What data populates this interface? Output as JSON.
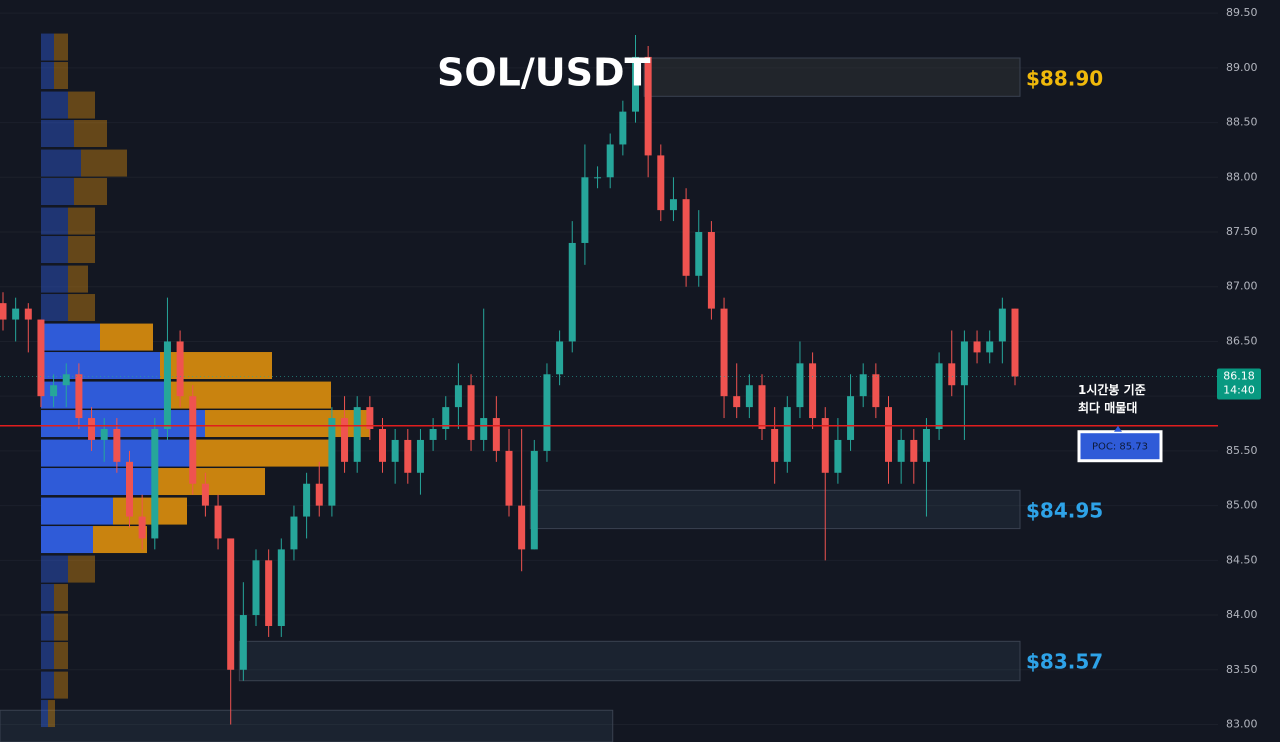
{
  "chart_data": {
    "type": "candlestick",
    "title": "SOL/USDT",
    "ylim": [
      82.84,
      89.62
    ],
    "yticks": [
      {
        "value": 83,
        "label": "83.00"
      },
      {
        "value": 83.5,
        "label": "83.50"
      },
      {
        "value": 84,
        "label": "84.00"
      },
      {
        "value": 84.5,
        "label": "84.50"
      },
      {
        "value": 85,
        "label": "85.00"
      },
      {
        "value": 85.5,
        "label": "85.50"
      },
      {
        "value": 86,
        "label": "86.00"
      },
      {
        "value": 86.5,
        "label": "86.50"
      },
      {
        "value": 87,
        "label": "87.00"
      },
      {
        "value": 87.5,
        "label": "87.50"
      },
      {
        "value": 88,
        "label": "88.00"
      },
      {
        "value": 88.5,
        "label": "88.50"
      },
      {
        "value": 89,
        "label": "89.00"
      },
      {
        "value": 89.5,
        "label": "89.50"
      }
    ],
    "grid": true,
    "up_color": "#26a69a",
    "down_color": "#ef5350",
    "open": [
      86.85,
      86.7,
      86.8,
      86.7,
      86.0,
      86.1,
      86.2,
      85.8,
      85.6,
      85.7,
      85.4,
      84.9,
      84.7,
      85.7,
      86.5,
      86.0,
      85.2,
      85.0,
      84.7,
      83.5,
      84.0,
      84.5,
      83.9,
      84.6,
      84.9,
      85.2,
      85.0,
      85.8,
      85.4,
      85.9,
      85.7,
      85.4,
      85.6,
      85.3,
      85.6,
      85.7,
      85.9,
      86.1,
      85.6,
      85.8,
      85.5,
      85.0,
      84.6,
      85.5,
      86.2,
      86.5,
      87.4,
      88.0,
      88.0,
      88.3,
      88.6,
      89.1,
      88.2,
      87.7,
      87.8,
      87.1,
      87.5,
      86.8,
      86.0,
      85.9,
      86.1,
      85.7,
      85.4,
      85.9,
      86.3,
      85.8,
      85.3,
      85.6,
      86.0,
      86.2,
      85.9,
      85.4,
      85.6,
      85.4,
      85.7,
      86.3,
      86.1,
      86.5,
      86.4,
      86.5,
      86.8
    ],
    "high": [
      86.95,
      86.9,
      86.85,
      86.7,
      86.2,
      86.3,
      86.3,
      85.9,
      85.8,
      85.8,
      85.5,
      85.1,
      85.8,
      86.9,
      86.6,
      86.1,
      85.3,
      85.1,
      84.7,
      84.3,
      84.6,
      84.6,
      84.7,
      85.0,
      85.3,
      85.4,
      85.9,
      86.0,
      86.0,
      86.0,
      85.8,
      85.7,
      85.7,
      85.7,
      85.8,
      86.0,
      86.3,
      86.2,
      86.8,
      86.0,
      85.7,
      85.7,
      85.6,
      86.3,
      86.6,
      87.6,
      88.3,
      88.1,
      88.4,
      88.7,
      89.3,
      89.2,
      88.3,
      88.0,
      87.9,
      87.7,
      87.6,
      86.9,
      86.3,
      86.2,
      86.2,
      85.9,
      86.0,
      86.5,
      86.4,
      85.9,
      85.8,
      86.2,
      86.3,
      86.3,
      86.0,
      85.7,
      85.7,
      85.8,
      86.4,
      86.6,
      86.6,
      86.6,
      86.6,
      86.9,
      86.8
    ],
    "low": [
      86.6,
      86.5,
      86.4,
      85.9,
      85.9,
      85.9,
      85.7,
      85.5,
      85.4,
      85.3,
      84.8,
      84.6,
      84.6,
      85.6,
      85.9,
      85.1,
      84.9,
      84.6,
      83.0,
      83.4,
      83.9,
      83.8,
      83.8,
      84.5,
      84.7,
      84.9,
      84.9,
      85.3,
      85.3,
      85.6,
      85.3,
      85.2,
      85.2,
      85.1,
      85.5,
      85.6,
      85.7,
      85.5,
      85.5,
      85.4,
      84.9,
      84.4,
      84.6,
      85.4,
      86.1,
      86.4,
      87.2,
      87.9,
      87.9,
      88.2,
      88.5,
      88.0,
      87.6,
      87.6,
      87.0,
      87.0,
      86.7,
      85.8,
      85.8,
      85.8,
      85.6,
      85.2,
      85.3,
      85.8,
      85.7,
      84.5,
      85.2,
      85.5,
      85.9,
      85.8,
      85.2,
      85.2,
      85.2,
      84.9,
      85.6,
      86.0,
      85.6,
      86.3,
      86.3,
      86.3,
      86.1
    ],
    "close": [
      86.7,
      86.8,
      86.7,
      86.0,
      86.1,
      86.2,
      85.8,
      85.6,
      85.7,
      85.4,
      84.9,
      84.7,
      85.7,
      86.5,
      86.0,
      85.2,
      85.0,
      84.7,
      83.5,
      84.0,
      84.5,
      83.9,
      84.6,
      84.9,
      85.2,
      85.0,
      85.8,
      85.4,
      85.9,
      85.7,
      85.4,
      85.6,
      85.3,
      85.6,
      85.7,
      85.9,
      86.1,
      85.6,
      85.8,
      85.5,
      85.0,
      84.6,
      85.5,
      86.2,
      86.5,
      87.4,
      88.0,
      88.0,
      88.3,
      88.6,
      89.1,
      88.2,
      87.7,
      87.8,
      87.1,
      87.5,
      86.8,
      86.0,
      85.9,
      86.1,
      85.7,
      85.4,
      85.9,
      86.3,
      85.8,
      85.3,
      85.6,
      86.0,
      86.2,
      85.9,
      85.4,
      85.6,
      85.4,
      85.7,
      86.3,
      86.1,
      86.5,
      86.4,
      86.5,
      86.8,
      86.18
    ],
    "last_price": 86.18,
    "last_time": "14:40",
    "volume_profile": {
      "levels": [
        89.19,
        88.93,
        88.66,
        88.4,
        88.13,
        87.87,
        87.6,
        87.34,
        87.07,
        86.81,
        86.54,
        86.28,
        86.01,
        85.75,
        85.48,
        85.22,
        84.95,
        84.69,
        84.42,
        84.16,
        83.89,
        83.63,
        83.36,
        83.1
      ],
      "buy": [
        13,
        13,
        27,
        33,
        40,
        33,
        27,
        27,
        27,
        27,
        59,
        119,
        124,
        164,
        154,
        114,
        72,
        52,
        27,
        13,
        13,
        13,
        13,
        7
      ],
      "sell": [
        14,
        14,
        27,
        33,
        46,
        33,
        27,
        27,
        20,
        27,
        53,
        112,
        166,
        165,
        140,
        110,
        74,
        54,
        27,
        14,
        14,
        14,
        14,
        7
      ],
      "buy_color": "#2f5bd8",
      "sell_color": "#c9830f",
      "value_area": [
        84.69,
        86.54
      ]
    },
    "poc": {
      "value": 85.73,
      "label": "POC: 85.73"
    },
    "poc_note": [
      "1시간봉 기준",
      "최다 매물대"
    ],
    "zones": [
      {
        "top": 89.09,
        "bottom": 88.74,
        "level": {
          "value": 88.9,
          "label": "$88.90"
        },
        "color": "#f0b90b"
      },
      {
        "top": 85.14,
        "bottom": 84.79,
        "level": {
          "value": 84.95,
          "label": "$84.95"
        },
        "color": "#2ea3e8"
      },
      {
        "top": 83.76,
        "bottom": 83.4,
        "level": {
          "value": 83.57,
          "label": "$83.57"
        },
        "color": "#2ea3e8"
      },
      {
        "top": 83.13,
        "bottom": 82.84
      }
    ]
  }
}
